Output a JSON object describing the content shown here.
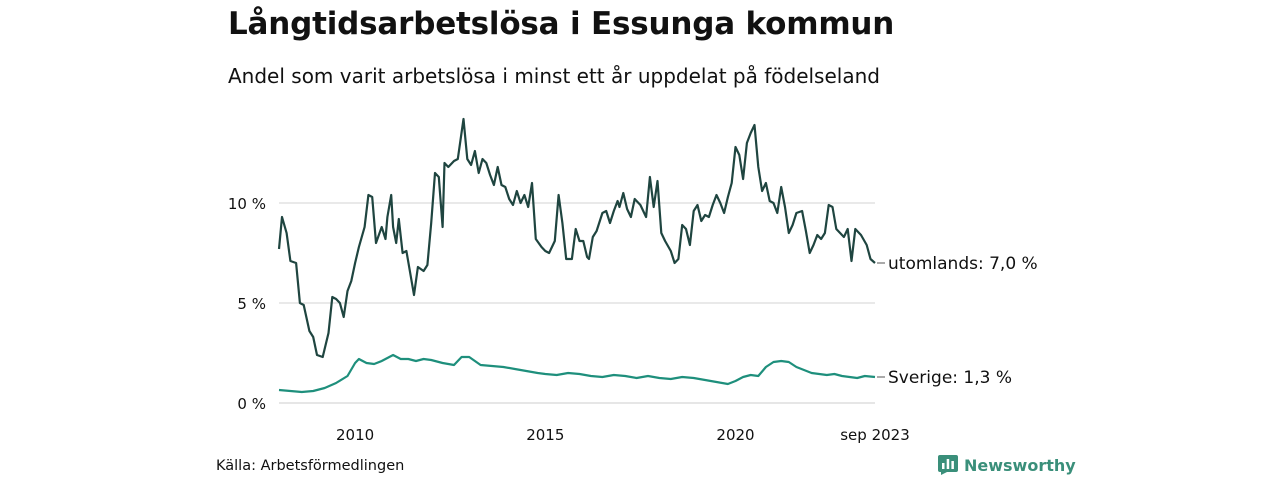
{
  "title": "Långtidsarbetslösa i Essunga kommun",
  "subtitle": "Andel som varit arbetslösa i minst ett år uppdelat på födelseland",
  "source": "Källa: Arbetsförmedlingen",
  "brand": {
    "name": "Newsworthy",
    "icon": "bar-chart-logo-icon",
    "color": "#3a8f7a"
  },
  "chart_data": {
    "type": "line",
    "ylim": [
      0,
      14.5
    ],
    "yticks": [
      0,
      5,
      10
    ],
    "ytick_labels": [
      "0 %",
      "5 %",
      "10 %"
    ],
    "x_start": 2008.0,
    "x_end": 2023.667,
    "xticks": [
      2010,
      2015,
      2020,
      2023.667
    ],
    "xtick_labels": [
      "2010",
      "2015",
      "2020",
      "sep 2023"
    ],
    "grid": true,
    "series": [
      {
        "name": "utomlands",
        "label": "utomlands: 7,0 %",
        "color": "#1f4540",
        "anchor": [
          [
            2008.0,
            7.7
          ],
          [
            2008.08,
            9.3
          ],
          [
            2008.2,
            8.5
          ],
          [
            2008.3,
            7.1
          ],
          [
            2008.45,
            7.0
          ],
          [
            2008.55,
            5.0
          ],
          [
            2008.65,
            4.9
          ],
          [
            2008.8,
            3.6
          ],
          [
            2008.9,
            3.3
          ],
          [
            2009.0,
            2.4
          ],
          [
            2009.15,
            2.3
          ],
          [
            2009.3,
            3.5
          ],
          [
            2009.4,
            5.3
          ],
          [
            2009.5,
            5.2
          ],
          [
            2009.6,
            5.0
          ],
          [
            2009.7,
            4.3
          ],
          [
            2009.8,
            5.6
          ],
          [
            2009.9,
            6.1
          ],
          [
            2010.0,
            7.0
          ],
          [
            2010.1,
            7.8
          ],
          [
            2010.25,
            8.8
          ],
          [
            2010.35,
            10.4
          ],
          [
            2010.45,
            10.3
          ],
          [
            2010.55,
            8.0
          ],
          [
            2010.7,
            8.8
          ],
          [
            2010.8,
            8.2
          ],
          [
            2010.85,
            9.3
          ],
          [
            2010.95,
            10.4
          ],
          [
            2011.0,
            8.8
          ],
          [
            2011.08,
            8.0
          ],
          [
            2011.15,
            9.2
          ],
          [
            2011.25,
            7.5
          ],
          [
            2011.35,
            7.6
          ],
          [
            2011.45,
            6.5
          ],
          [
            2011.55,
            5.4
          ],
          [
            2011.65,
            6.8
          ],
          [
            2011.8,
            6.6
          ],
          [
            2011.9,
            6.9
          ],
          [
            2012.0,
            9.0
          ],
          [
            2012.1,
            11.5
          ],
          [
            2012.2,
            11.3
          ],
          [
            2012.3,
            8.8
          ],
          [
            2012.35,
            12.0
          ],
          [
            2012.45,
            11.8
          ],
          [
            2012.6,
            12.1
          ],
          [
            2012.7,
            12.2
          ],
          [
            2012.85,
            14.2
          ],
          [
            2012.95,
            12.2
          ],
          [
            2013.05,
            11.9
          ],
          [
            2013.15,
            12.6
          ],
          [
            2013.25,
            11.5
          ],
          [
            2013.35,
            12.2
          ],
          [
            2013.45,
            12.0
          ],
          [
            2013.55,
            11.4
          ],
          [
            2013.65,
            10.9
          ],
          [
            2013.75,
            11.8
          ],
          [
            2013.85,
            10.9
          ],
          [
            2013.95,
            10.8
          ],
          [
            2014.05,
            10.2
          ],
          [
            2014.15,
            9.9
          ],
          [
            2014.25,
            10.6
          ],
          [
            2014.35,
            10.0
          ],
          [
            2014.45,
            10.4
          ],
          [
            2014.55,
            9.8
          ],
          [
            2014.65,
            11.0
          ],
          [
            2014.75,
            8.2
          ],
          [
            2014.9,
            7.8
          ],
          [
            2015.0,
            7.6
          ],
          [
            2015.1,
            7.5
          ],
          [
            2015.25,
            8.1
          ],
          [
            2015.35,
            10.4
          ],
          [
            2015.45,
            9.0
          ],
          [
            2015.55,
            7.2
          ],
          [
            2015.7,
            7.2
          ],
          [
            2015.8,
            8.7
          ],
          [
            2015.9,
            8.1
          ],
          [
            2016.0,
            8.1
          ],
          [
            2016.1,
            7.3
          ],
          [
            2016.15,
            7.2
          ],
          [
            2016.25,
            8.3
          ],
          [
            2016.35,
            8.6
          ],
          [
            2016.5,
            9.5
          ],
          [
            2016.6,
            9.6
          ],
          [
            2016.7,
            9.0
          ],
          [
            2016.8,
            9.6
          ],
          [
            2016.9,
            10.1
          ],
          [
            2016.95,
            9.8
          ],
          [
            2017.05,
            10.5
          ],
          [
            2017.15,
            9.7
          ],
          [
            2017.25,
            9.3
          ],
          [
            2017.35,
            10.2
          ],
          [
            2017.5,
            9.9
          ],
          [
            2017.65,
            9.3
          ],
          [
            2017.75,
            11.3
          ],
          [
            2017.85,
            9.8
          ],
          [
            2017.95,
            11.1
          ],
          [
            2018.05,
            8.5
          ],
          [
            2018.15,
            8.1
          ],
          [
            2018.3,
            7.6
          ],
          [
            2018.4,
            7.0
          ],
          [
            2018.5,
            7.2
          ],
          [
            2018.6,
            8.9
          ],
          [
            2018.7,
            8.7
          ],
          [
            2018.8,
            7.9
          ],
          [
            2018.9,
            9.6
          ],
          [
            2019.0,
            9.9
          ],
          [
            2019.1,
            9.1
          ],
          [
            2019.2,
            9.4
          ],
          [
            2019.3,
            9.3
          ],
          [
            2019.4,
            9.9
          ],
          [
            2019.5,
            10.4
          ],
          [
            2019.6,
            10.0
          ],
          [
            2019.7,
            9.5
          ],
          [
            2019.8,
            10.3
          ],
          [
            2019.9,
            11.0
          ],
          [
            2020.0,
            12.8
          ],
          [
            2020.1,
            12.4
          ],
          [
            2020.2,
            11.2
          ],
          [
            2020.3,
            13.0
          ],
          [
            2020.4,
            13.5
          ],
          [
            2020.5,
            13.9
          ],
          [
            2020.6,
            11.8
          ],
          [
            2020.7,
            10.6
          ],
          [
            2020.8,
            11.0
          ],
          [
            2020.9,
            10.1
          ],
          [
            2021.0,
            10.0
          ],
          [
            2021.1,
            9.5
          ],
          [
            2021.2,
            10.8
          ],
          [
            2021.3,
            9.8
          ],
          [
            2021.4,
            8.5
          ],
          [
            2021.5,
            8.9
          ],
          [
            2021.6,
            9.5
          ],
          [
            2021.75,
            9.6
          ],
          [
            2021.85,
            8.6
          ],
          [
            2021.95,
            7.5
          ],
          [
            2022.05,
            7.9
          ],
          [
            2022.15,
            8.4
          ],
          [
            2022.25,
            8.2
          ],
          [
            2022.35,
            8.5
          ],
          [
            2022.45,
            9.9
          ],
          [
            2022.55,
            9.8
          ],
          [
            2022.65,
            8.7
          ],
          [
            2022.75,
            8.5
          ],
          [
            2022.85,
            8.3
          ],
          [
            2022.95,
            8.7
          ],
          [
            2023.05,
            7.1
          ],
          [
            2023.15,
            8.7
          ],
          [
            2023.3,
            8.4
          ],
          [
            2023.45,
            7.9
          ],
          [
            2023.55,
            7.2
          ],
          [
            2023.667,
            7.0
          ]
        ]
      },
      {
        "name": "Sverige",
        "label": "Sverige: 1,3 %",
        "color": "#1e8f7c",
        "anchor": [
          [
            2008.0,
            0.65
          ],
          [
            2008.3,
            0.6
          ],
          [
            2008.6,
            0.55
          ],
          [
            2008.9,
            0.6
          ],
          [
            2009.2,
            0.75
          ],
          [
            2009.5,
            1.0
          ],
          [
            2009.8,
            1.35
          ],
          [
            2010.0,
            2.0
          ],
          [
            2010.1,
            2.2
          ],
          [
            2010.3,
            2.0
          ],
          [
            2010.5,
            1.95
          ],
          [
            2010.7,
            2.1
          ],
          [
            2010.9,
            2.3
          ],
          [
            2011.0,
            2.4
          ],
          [
            2011.2,
            2.2
          ],
          [
            2011.4,
            2.2
          ],
          [
            2011.6,
            2.1
          ],
          [
            2011.8,
            2.2
          ],
          [
            2012.0,
            2.15
          ],
          [
            2012.3,
            2.0
          ],
          [
            2012.6,
            1.9
          ],
          [
            2012.8,
            2.3
          ],
          [
            2013.0,
            2.3
          ],
          [
            2013.3,
            1.9
          ],
          [
            2013.6,
            1.85
          ],
          [
            2013.9,
            1.8
          ],
          [
            2014.2,
            1.7
          ],
          [
            2014.5,
            1.6
          ],
          [
            2014.8,
            1.5
          ],
          [
            2015.0,
            1.45
          ],
          [
            2015.3,
            1.4
          ],
          [
            2015.6,
            1.5
          ],
          [
            2015.9,
            1.45
          ],
          [
            2016.2,
            1.35
          ],
          [
            2016.5,
            1.3
          ],
          [
            2016.8,
            1.4
          ],
          [
            2017.1,
            1.35
          ],
          [
            2017.4,
            1.25
          ],
          [
            2017.7,
            1.35
          ],
          [
            2018.0,
            1.25
          ],
          [
            2018.3,
            1.2
          ],
          [
            2018.6,
            1.3
          ],
          [
            2018.9,
            1.25
          ],
          [
            2019.2,
            1.15
          ],
          [
            2019.5,
            1.05
          ],
          [
            2019.8,
            0.95
          ],
          [
            2020.0,
            1.1
          ],
          [
            2020.2,
            1.3
          ],
          [
            2020.4,
            1.4
          ],
          [
            2020.6,
            1.35
          ],
          [
            2020.8,
            1.8
          ],
          [
            2021.0,
            2.05
          ],
          [
            2021.2,
            2.1
          ],
          [
            2021.4,
            2.05
          ],
          [
            2021.6,
            1.8
          ],
          [
            2021.8,
            1.65
          ],
          [
            2022.0,
            1.5
          ],
          [
            2022.2,
            1.45
          ],
          [
            2022.4,
            1.4
          ],
          [
            2022.6,
            1.45
          ],
          [
            2022.8,
            1.35
          ],
          [
            2023.0,
            1.3
          ],
          [
            2023.2,
            1.25
          ],
          [
            2023.4,
            1.35
          ],
          [
            2023.667,
            1.3
          ]
        ]
      }
    ]
  }
}
